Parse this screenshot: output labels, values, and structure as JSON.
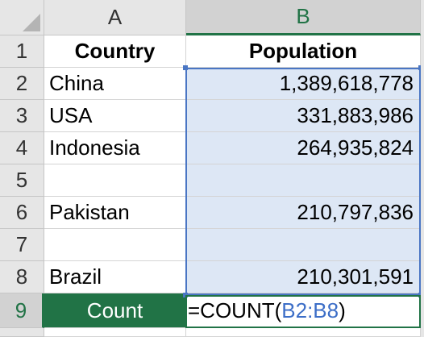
{
  "columns": [
    {
      "label": "A",
      "selected": false
    },
    {
      "label": "B",
      "selected": true
    }
  ],
  "rows": [
    {
      "num": "1",
      "a": "Country",
      "b": "Population",
      "header": true
    },
    {
      "num": "2",
      "a": "China",
      "b": "1,389,618,778"
    },
    {
      "num": "3",
      "a": "USA",
      "b": "331,883,986"
    },
    {
      "num": "4",
      "a": "Indonesia",
      "b": "264,935,824"
    },
    {
      "num": "5",
      "a": "",
      "b": ""
    },
    {
      "num": "6",
      "a": "Pakistan",
      "b": "210,797,836"
    },
    {
      "num": "7",
      "a": "",
      "b": ""
    },
    {
      "num": "8",
      "a": "Brazil",
      "b": "210,301,591"
    }
  ],
  "count_row": {
    "num": "9",
    "label": "Count",
    "formula_prefix": "=COUNT(",
    "formula_ref": "B2:B8",
    "formula_suffix": ")"
  },
  "colors": {
    "accent": "#217346",
    "range_fill": "#dde7f5",
    "range_border": "#4a76c4",
    "header_bg": "#e6e6e6"
  }
}
